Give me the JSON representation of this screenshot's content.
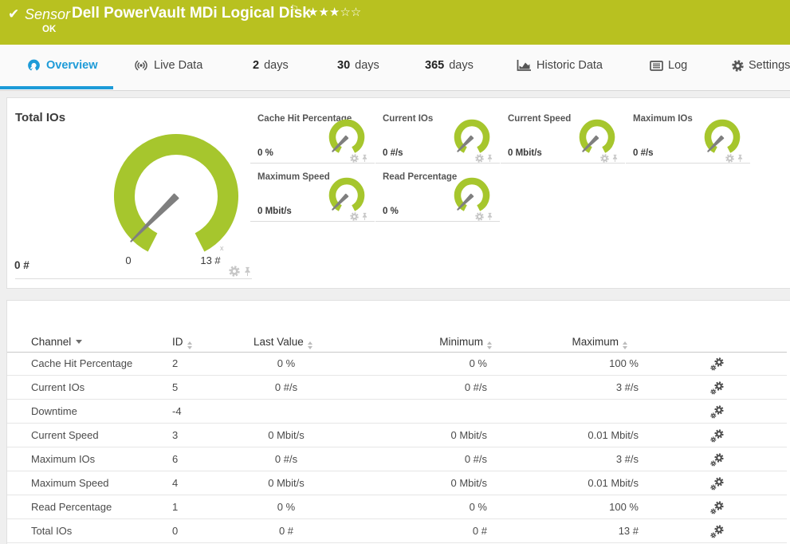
{
  "header": {
    "kind": "Sensor",
    "title": "Dell PowerVault MDi Logical Disk",
    "status": "OK",
    "rating": {
      "filled": 3,
      "total": 5
    }
  },
  "tabs": [
    {
      "key": "overview",
      "label": "Overview",
      "icon": "gauge-icon",
      "active": true
    },
    {
      "key": "live-data",
      "label": "Live Data",
      "icon": "live-icon"
    },
    {
      "key": "2-days",
      "num": "2",
      "label": "days"
    },
    {
      "key": "30-days",
      "num": "30",
      "label": "days"
    },
    {
      "key": "365-days",
      "num": "365",
      "label": "days"
    },
    {
      "key": "historic-data",
      "label": "Historic Data",
      "icon": "chart-icon"
    },
    {
      "key": "log",
      "label": "Log",
      "icon": "log-icon"
    },
    {
      "key": "settings",
      "label": "Settings",
      "icon": "gear-icon"
    }
  ],
  "gauges": {
    "primary": {
      "title": "Total IOs",
      "value": "0 #",
      "scale_min": "0",
      "scale_max": "13 #",
      "scale_note": "x"
    },
    "small": [
      {
        "title": "Cache Hit Percentage",
        "value": "0 %"
      },
      {
        "title": "Current IOs",
        "value": "0 #/s"
      },
      {
        "title": "Current Speed",
        "value": "0 Mbit/s"
      },
      {
        "title": "Maximum IOs",
        "value": "0 #/s"
      },
      {
        "title": "Maximum Speed",
        "value": "0 Mbit/s"
      },
      {
        "title": "Read Percentage",
        "value": "0 %"
      }
    ]
  },
  "table": {
    "headers": [
      {
        "label": "Channel",
        "sort": "desc"
      },
      {
        "label": "ID",
        "sort": "both"
      },
      {
        "label": "Last Value",
        "sort": "both"
      },
      {
        "label": "Minimum",
        "sort": "both"
      },
      {
        "label": "Maximum",
        "sort": "both"
      }
    ],
    "rows": [
      {
        "channel": "Cache Hit Percentage",
        "id": "2",
        "last": "0 %",
        "min": "0 %",
        "max": "100 %"
      },
      {
        "channel": "Current IOs",
        "id": "5",
        "last": "0 #/s",
        "min": "0 #/s",
        "max": "3 #/s"
      },
      {
        "channel": "Downtime",
        "id": "-4",
        "last": "",
        "min": "",
        "max": ""
      },
      {
        "channel": "Current Speed",
        "id": "3",
        "last": "0 Mbit/s",
        "min": "0 Mbit/s",
        "max": "0.01 Mbit/s"
      },
      {
        "channel": "Maximum IOs",
        "id": "6",
        "last": "0 #/s",
        "min": "0 #/s",
        "max": "3 #/s"
      },
      {
        "channel": "Maximum Speed",
        "id": "4",
        "last": "0 Mbit/s",
        "min": "0 Mbit/s",
        "max": "0.01 Mbit/s"
      },
      {
        "channel": "Read Percentage",
        "id": "1",
        "last": "0 %",
        "min": "0 %",
        "max": "100 %"
      },
      {
        "channel": "Total IOs",
        "id": "0",
        "last": "0 #",
        "min": "0 #",
        "max": "13 #"
      }
    ]
  },
  "colors": {
    "status_green": "#b8c120",
    "gauge_green": "#a6c62d",
    "accent_blue": "#1d9bd8",
    "needle_gray": "#7f7f7f"
  }
}
